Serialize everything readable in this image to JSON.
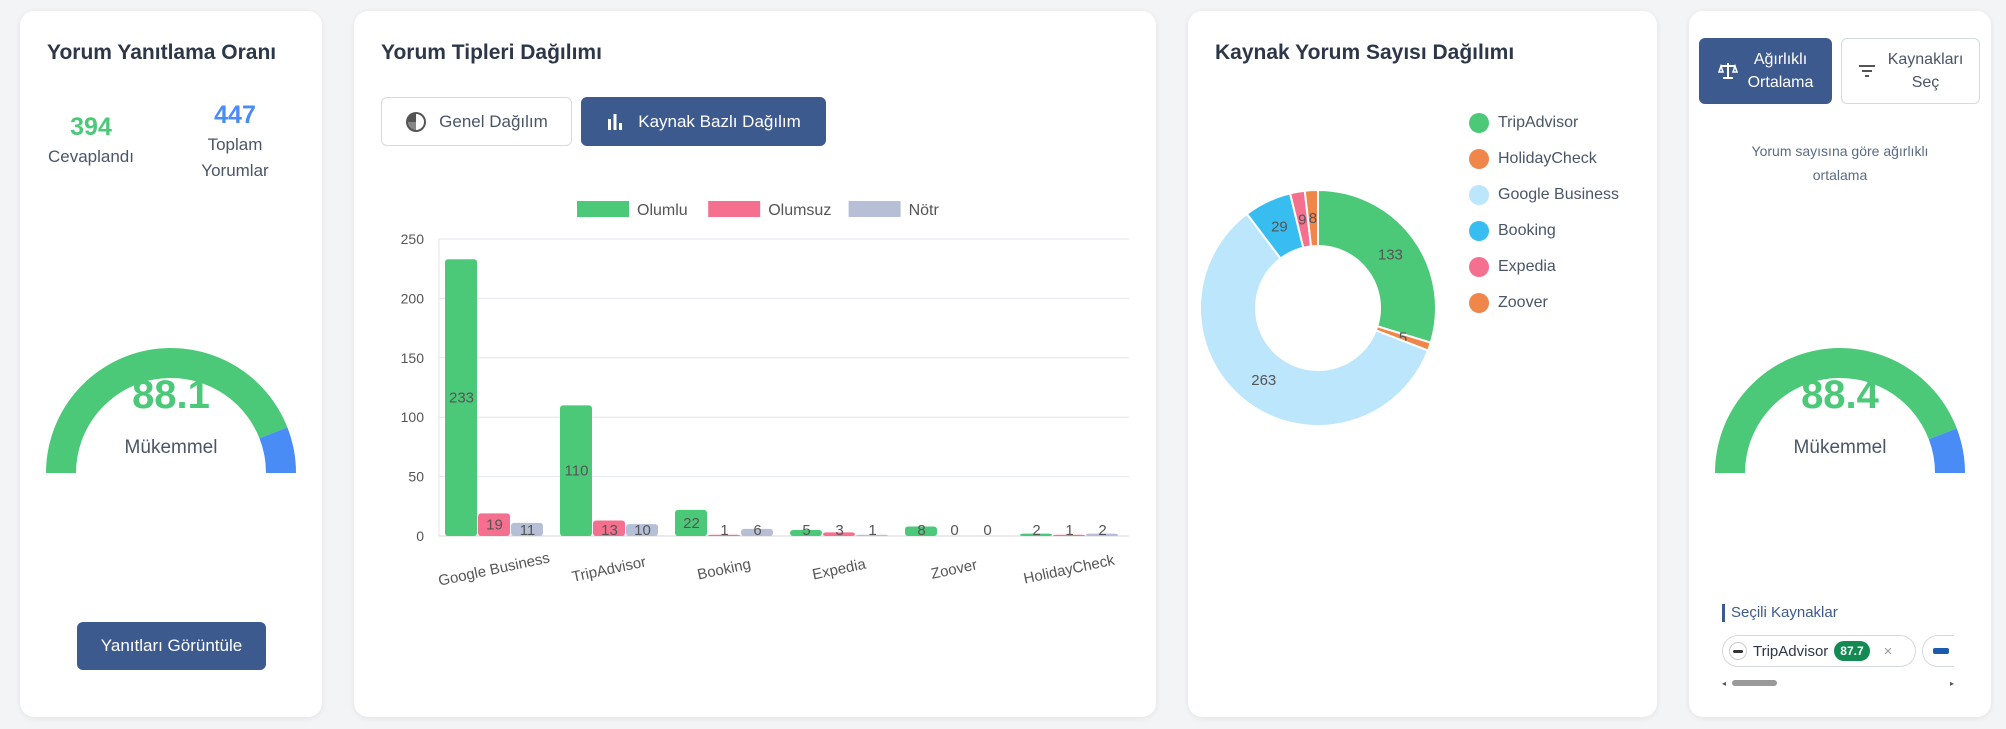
{
  "reply_rate": {
    "title": "Yorum Yanıtlama Oranı",
    "answered_value": "394",
    "answered_label": "Cevaplandı",
    "total_value": "447",
    "total_label_line1": "Toplam",
    "total_label_line2": "Yorumlar",
    "gauge_value": "88.1",
    "gauge_label": "Mükemmel",
    "gauge_fraction": 0.881,
    "view_button": "Yanıtları Görüntüle"
  },
  "review_types": {
    "title": "Yorum Tipleri Dağılımı",
    "tab_general": "Genel Dağılım",
    "tab_source": "Kaynak Bazlı Dağılım"
  },
  "source_distribution": {
    "title": "Kaynak Yorum Sayısı Dağılımı"
  },
  "weighted": {
    "weighted_line1": "Ağırlıklı",
    "weighted_line2": "Ortalama",
    "select_line1": "Kaynakları",
    "select_line2": "Seç",
    "description_line1": "Yorum sayısına göre ağırlıklı",
    "description_line2": "ortalama",
    "gauge_value": "88.4",
    "gauge_label": "Mükemmel",
    "gauge_fraction": 0.884,
    "selected_title": "Seçili Kaynaklar",
    "chip_name": "TripAdvisor",
    "chip_score": "87.7",
    "chip_close": "×"
  },
  "colors": {
    "green": "#4cc978",
    "blue": "#4a8cf5",
    "pink": "#f5708f",
    "gray": "#b7bfd6",
    "primary": "#3d5a8e"
  },
  "icons": {
    "pie": "pie-chart-icon",
    "bar": "bar-chart-icon",
    "scale": "balance-scale-icon",
    "filter": "filter-icon"
  },
  "chart_data": [
    {
      "type": "bar",
      "categories": [
        "Google Business",
        "TripAdvisor",
        "Booking",
        "Expedia",
        "Zoover",
        "HolidayCheck"
      ],
      "series": [
        {
          "name": "Olumlu",
          "color": "#4cc978",
          "values": [
            233,
            110,
            22,
            5,
            8,
            2
          ]
        },
        {
          "name": "Olumsuz",
          "color": "#f5708f",
          "values": [
            19,
            13,
            1,
            3,
            0,
            1
          ]
        },
        {
          "name": "Nötr",
          "color": "#b7bfd6",
          "values": [
            11,
            10,
            6,
            1,
            0,
            2
          ]
        }
      ],
      "yticks": [
        "0",
        "50",
        "100",
        "150",
        "200",
        "250"
      ],
      "ylim": [
        0,
        250
      ],
      "legend": "top",
      "grid": true
    },
    {
      "type": "pie",
      "labels": [
        "TripAdvisor",
        "HolidayCheck",
        "Google Business",
        "Booking",
        "Expedia",
        "Zoover"
      ],
      "values": [
        133,
        5,
        263,
        29,
        9,
        8
      ],
      "colors": [
        "#4cc978",
        "#f0864a",
        "#bce6fb",
        "#38bdf0",
        "#f5708f",
        "#f0864a"
      ],
      "legend": "right"
    }
  ]
}
